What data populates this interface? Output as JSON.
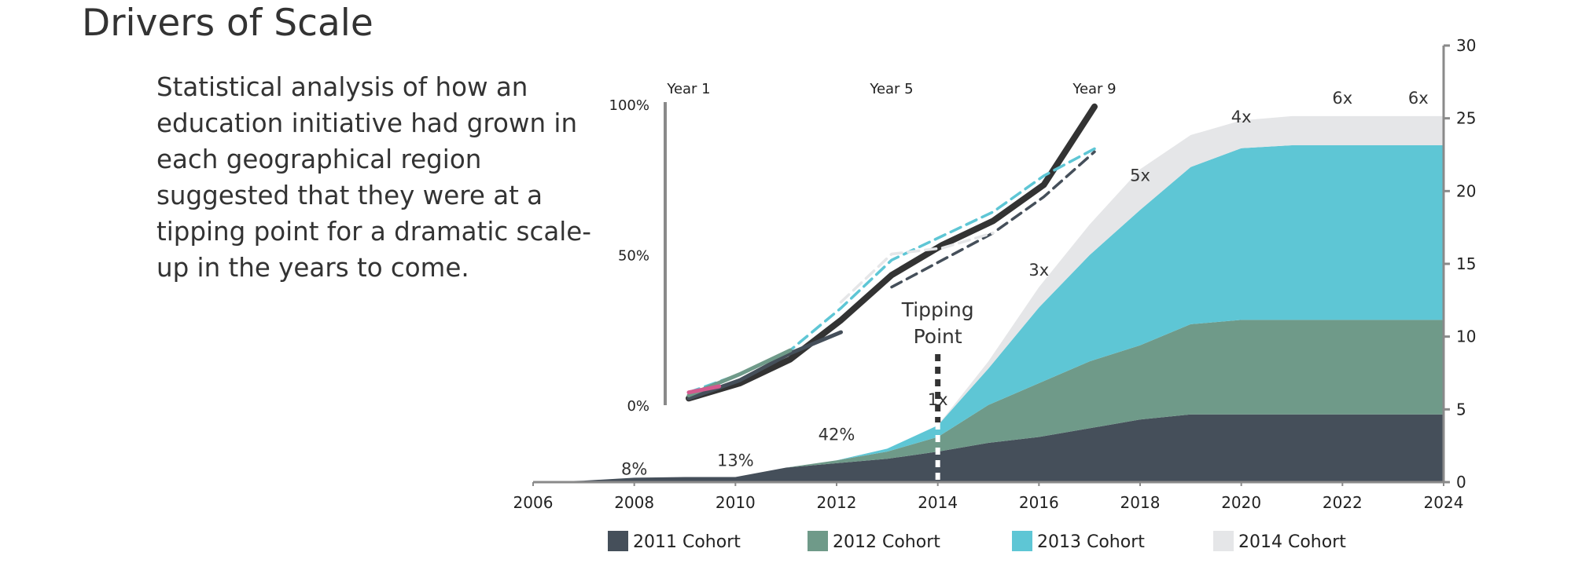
{
  "title": "Drivers of Scale",
  "description": "Statistical  analysis of how an education initiative had grown in each geographical region suggested that they were at a tipping point for a dramatic scale-up in the years to come.",
  "colors": {
    "cohort_2011": "#454f5a",
    "cohort_2012": "#6f9a89",
    "cohort_2013": "#5ec6d5",
    "cohort_2014": "#e5e6e8",
    "axis": "#8a8a8a",
    "inset_main": "#333333",
    "inset_pink": "#d45a8e"
  },
  "chart_data": [
    {
      "type": "area",
      "stacked": true,
      "x": [
        2006,
        2007,
        2008,
        2009,
        2010,
        2011,
        2012,
        2013,
        2014,
        2015,
        2016,
        2017,
        2018,
        2019,
        2020,
        2021,
        2022,
        2023,
        2024
      ],
      "xticks": [
        "2006",
        "2008",
        "2010",
        "2012",
        "2014",
        "2016",
        "2018",
        "2020",
        "2022",
        "2024"
      ],
      "xlim": [
        2006,
        2024
      ],
      "ylim": [
        0,
        30
      ],
      "yticks": [
        "0",
        "5",
        "10",
        "15",
        "20",
        "25",
        "30"
      ],
      "y_axis_position": "right",
      "series": [
        {
          "name": "2011 Cohort",
          "key": "cohort_2011",
          "values": [
            0,
            0.1,
            0.3,
            0.35,
            0.35,
            1.0,
            1.3,
            1.6,
            2.1,
            2.7,
            3.1,
            3.7,
            4.3,
            4.65,
            4.65,
            4.65,
            4.65,
            4.65,
            4.65
          ]
        },
        {
          "name": "2012 Cohort",
          "key": "cohort_2012",
          "values": [
            0,
            0,
            0,
            0,
            0,
            0,
            0.2,
            0.5,
            1.0,
            2.6,
            3.7,
            4.6,
            5.1,
            6.2,
            6.5,
            6.5,
            6.5,
            6.5,
            6.5
          ]
        },
        {
          "name": "2013 Cohort",
          "key": "cohort_2013",
          "values": [
            0,
            0,
            0,
            0,
            0,
            0,
            0,
            0.2,
            0.8,
            2.5,
            5.2,
            7.3,
            9.3,
            10.8,
            11.8,
            12.0,
            12.0,
            12.0,
            12.0
          ]
        },
        {
          "name": "2014 Cohort",
          "key": "cohort_2014",
          "values": [
            0,
            0,
            0,
            0,
            0,
            0,
            0,
            0,
            0,
            0.5,
            1.4,
            2.1,
            2.8,
            2.2,
            1.9,
            2.0,
            2.0,
            2.0,
            2.0
          ]
        }
      ],
      "annotations": [
        {
          "text": "8%",
          "x": 2008,
          "y": 0.5
        },
        {
          "text": "13%",
          "x": 2010,
          "y": 1.1
        },
        {
          "text": "42%",
          "x": 2012,
          "y": 2.9
        },
        {
          "text": "1x",
          "x": 2014,
          "y": 5.3
        },
        {
          "text": "3x",
          "x": 2016,
          "y": 14.2
        },
        {
          "text": "5x",
          "x": 2018,
          "y": 20.7
        },
        {
          "text": "4x",
          "x": 2020,
          "y": 24.7
        },
        {
          "text": "6x",
          "x": 2022,
          "y": 26.0
        },
        {
          "text": "6x",
          "x": 2023.5,
          "y": 26.0
        }
      ],
      "tipping_point": {
        "label_line1": "Tipping",
        "label_line2": "Point",
        "x": 2014
      },
      "legend": "bottom"
    },
    {
      "type": "line",
      "x_label_ticks": [
        "Year 1",
        "Year 5",
        "Year 9"
      ],
      "yticks": [
        "0%",
        "50%",
        "100%"
      ],
      "ylim": [
        0,
        100
      ],
      "xlim": [
        1,
        9
      ],
      "series": [
        {
          "key": "inset_main",
          "style": "solid",
          "x": [
            1,
            2,
            3,
            4,
            5,
            6,
            7,
            8,
            9
          ],
          "y": [
            2,
            7,
            15,
            28,
            43,
            53,
            61,
            73,
            99
          ]
        },
        {
          "key": "cohort_2013",
          "style": "dashed",
          "x": [
            1,
            2,
            3,
            4,
            5,
            6,
            7,
            8,
            9
          ],
          "y": [
            4,
            10,
            18,
            32,
            48,
            56,
            64,
            76,
            85
          ]
        },
        {
          "key": "cohort_2011",
          "style": "dashed",
          "x": [
            5,
            6,
            7,
            8,
            9
          ],
          "y": [
            39,
            48,
            57,
            69,
            84
          ]
        },
        {
          "key": "cohort_2014",
          "style": "dashed",
          "x": [
            4,
            5,
            6,
            7
          ],
          "y": [
            34,
            50,
            52,
            57
          ]
        },
        {
          "key": "cohort_2011",
          "style": "solid",
          "x": [
            1,
            2,
            3,
            4
          ],
          "y": [
            2,
            8,
            17,
            24
          ]
        },
        {
          "key": "cohort_2012",
          "style": "solid",
          "x": [
            1,
            2,
            3
          ],
          "y": [
            3,
            10,
            18
          ]
        },
        {
          "key": "inset_pink",
          "style": "solid",
          "x": [
            1,
            1.6
          ],
          "y": [
            4,
            6
          ]
        }
      ]
    }
  ]
}
